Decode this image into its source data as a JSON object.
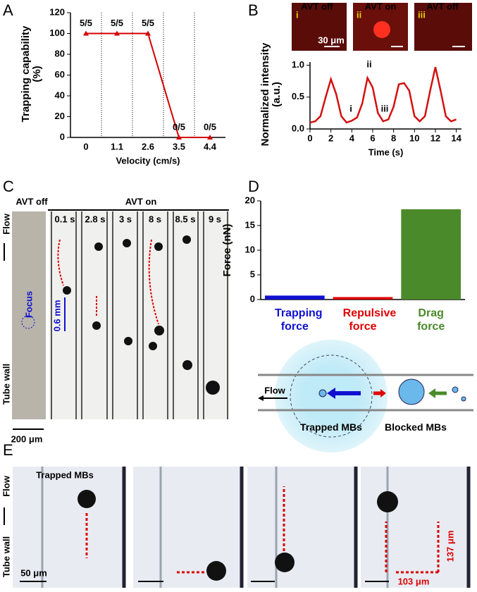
{
  "panel_labels": [
    "A",
    "B",
    "C",
    "D",
    "E"
  ],
  "chart_data": [
    {
      "type": "line",
      "ylabel": "Trapping capability (%)",
      "xlabel": "Velocity (cm/s)",
      "categories": [
        "0",
        "1.1",
        "2.6",
        "3.5",
        "4.4"
      ],
      "values": [
        100,
        100,
        100,
        0,
        0
      ],
      "value_labels": [
        "5/5",
        "5/5",
        "5/5",
        "0/5",
        "0/5"
      ],
      "color": "#d40000",
      "ylim": [
        0,
        120
      ],
      "yticks": [
        0,
        20,
        40,
        60,
        80,
        100,
        120
      ]
    },
    {
      "type": "line",
      "ylabel": "Normalized intensity (a.u.)",
      "xlabel": "Time (s)",
      "x": [
        0,
        0.5,
        1,
        1.5,
        2,
        2.5,
        3,
        3.5,
        4,
        4.5,
        5,
        5.5,
        6,
        6.5,
        7,
        7.5,
        8,
        8.5,
        9,
        9.5,
        10,
        10.5,
        11,
        11.5,
        12,
        12.5,
        13,
        13.5,
        14
      ],
      "values": [
        0.1,
        0.12,
        0.2,
        0.5,
        0.78,
        0.55,
        0.2,
        0.1,
        0.13,
        0.18,
        0.4,
        0.8,
        0.65,
        0.25,
        0.12,
        0.15,
        0.35,
        0.7,
        0.72,
        0.6,
        0.2,
        0.12,
        0.2,
        0.6,
        0.97,
        0.6,
        0.2,
        0.12,
        0.15
      ],
      "color": "#d41010",
      "annotations": [
        "i",
        "ii",
        "iii"
      ],
      "xlim": [
        0,
        14.5
      ],
      "xticks": [
        0,
        2,
        4,
        6,
        8,
        10,
        12,
        14
      ],
      "ylim": [
        0,
        1.05
      ],
      "yticks": [
        {
          "value": 0,
          "label": "0.0"
        },
        {
          "value": 0.5,
          "label": "0.5"
        },
        {
          "value": 1,
          "label": "1.0"
        }
      ]
    },
    {
      "type": "bar",
      "ylabel": "Force (nN)",
      "categories": [
        "Trapping force",
        "Repulsive force",
        "Drag force"
      ],
      "values": [
        0.8,
        0.5,
        18.3
      ],
      "colors": [
        "#1010d0",
        "#e00000",
        "#4a8a2a"
      ],
      "ylim": [
        0,
        20
      ],
      "yticks": [
        0,
        5,
        10,
        15,
        20
      ]
    }
  ],
  "panel_b_images": {
    "captions": [
      "AVT off",
      "AVT on",
      "AVT off"
    ],
    "indices": [
      "i",
      "ii",
      "iii"
    ],
    "scale_bar": "30 μm"
  },
  "panel_c": {
    "off_label": "AVT off",
    "on_label": "AVT on",
    "times": [
      "0.1 s",
      "2.8 s",
      "3 s",
      "8 s",
      "8.5 s",
      "9 s"
    ],
    "flow": "Flow",
    "focus": "Focus",
    "distance": "0.6 mm",
    "tube_wall": "Tube wall",
    "scale_bar": "200 μm"
  },
  "panel_d_diagram": {
    "flow": "Flow",
    "trapped": "Trapped MBs",
    "blocked": "Blocked MBs"
  },
  "panel_e": {
    "trapped": "Trapped MBs",
    "flow": "Flow",
    "tube_wall": "Tube wall",
    "scale_bar": "50 μm",
    "dx": "103 μm",
    "dy": "137 μm"
  }
}
